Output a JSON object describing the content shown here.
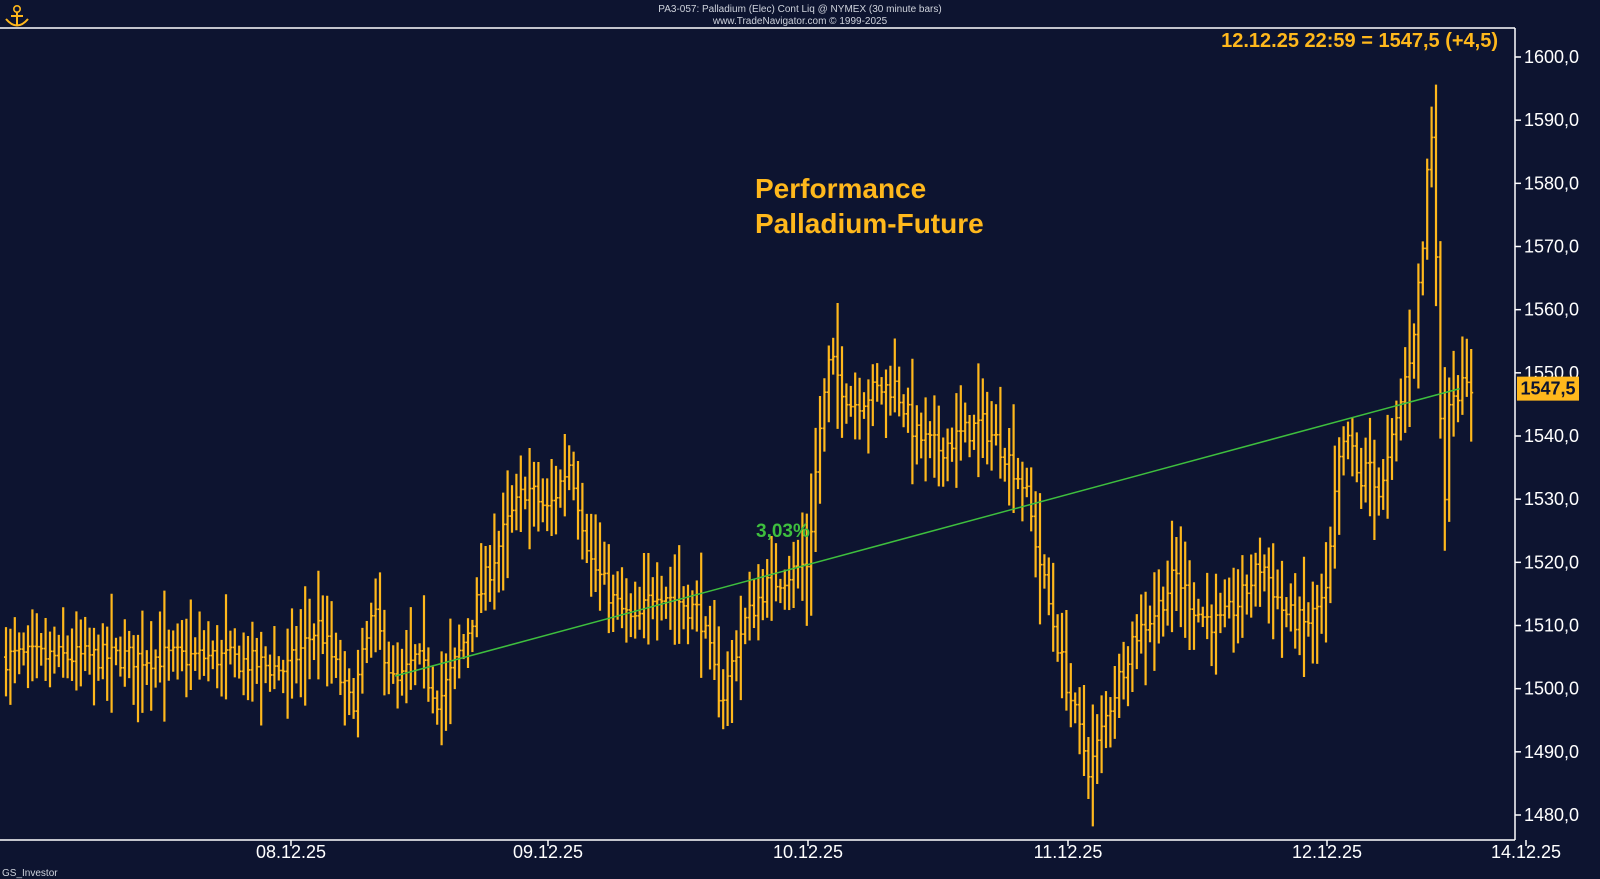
{
  "header": {
    "line1": "PA3-057: Palladium (Elec) Cont Liq @ NYMEX (30 minute bars)",
    "line2": "www.TradeNavigator.com © 1999-2025"
  },
  "watermark_bottom": "GS_Investor",
  "colors": {
    "background": "#0d1430",
    "bars": "#ffb81c",
    "trend": "#3ebf3e",
    "axis": "#ffffff"
  },
  "chart_data": {
    "type": "ohlc-bar",
    "title": "Performance",
    "subtitle": "Palladium-Future",
    "last_quote": "12.12.25 22:59 = 1547,5 (+4,5)",
    "last_price_label": "1547,5",
    "last_price": 1547.5,
    "trend_label": "3,03%",
    "trend_line": {
      "from": [
        "08.12.25 10:00",
        1502
      ],
      "to": [
        "12.12.25 23:00",
        1547.5
      ]
    },
    "ylim": [
      1480,
      1600
    ],
    "yticks": [
      "1480,0",
      "1490,0",
      "1500,0",
      "1510,0",
      "1520,0",
      "1530,0",
      "1540,0",
      "1550,0",
      "1560,0",
      "1570,0",
      "1580,0",
      "1590,0",
      "1600,0"
    ],
    "xticks": [
      "08.12.25",
      "09.12.25",
      "10.12.25",
      "11.12.25",
      "12.12.25",
      "14.12.25"
    ],
    "series": [
      {
        "key": [
          [
            "07.12.25 18:00",
            1505
          ],
          [
            "08.12.25 00:00",
            1503
          ],
          [
            "08.12.25 03:00",
            1510
          ],
          [
            "08.12.25 06:00",
            1497
          ],
          [
            "08.12.25 08:00",
            1512
          ],
          [
            "08.12.25 10:00",
            1500
          ],
          [
            "08.12.25 12:00",
            1505
          ],
          [
            "08.12.25 14:00",
            1498
          ],
          [
            "08.12.25 16:00",
            1506
          ],
          [
            "08.12.25 18:00",
            1516
          ],
          [
            "08.12.25 20:00",
            1525
          ],
          [
            "08.12.25 22:00",
            1532
          ],
          [
            "09.12.25 00:00",
            1528
          ],
          [
            "09.12.25 02:00",
            1536
          ],
          [
            "09.12.25 04:00",
            1520
          ],
          [
            "09.12.25 06:00",
            1514
          ],
          [
            "09.12.25 08:00",
            1510
          ],
          [
            "09.12.25 10:00",
            1516
          ],
          [
            "09.12.25 12:00",
            1514
          ],
          [
            "09.12.25 14:00",
            1512
          ],
          [
            "09.12.25 16:00",
            1498
          ],
          [
            "09.12.25 18:00",
            1510
          ],
          [
            "09.12.25 20:00",
            1516
          ],
          [
            "09.12.25 22:00",
            1518
          ],
          [
            "10.12.25 00:00",
            1520
          ],
          [
            "10.12.25 01:00",
            1540
          ],
          [
            "10.12.25 02:00",
            1552
          ],
          [
            "10.12.25 04:00",
            1545
          ],
          [
            "10.12.25 06:00",
            1547
          ],
          [
            "10.12.25 08:00",
            1548
          ],
          [
            "10.12.25 10:00",
            1540
          ],
          [
            "10.12.25 12:00",
            1538
          ],
          [
            "10.12.25 14:00",
            1540
          ],
          [
            "10.12.25 16:00",
            1542
          ],
          [
            "10.12.25 18:00",
            1538
          ],
          [
            "10.12.25 20:00",
            1532
          ],
          [
            "10.12.25 22:00",
            1515
          ],
          [
            "11.12.25 00:00",
            1500
          ],
          [
            "11.12.25 02:00",
            1487
          ],
          [
            "11.12.25 04:00",
            1498
          ],
          [
            "11.12.25 06:00",
            1508
          ],
          [
            "11.12.25 08:00",
            1512
          ],
          [
            "11.12.25 10:00",
            1518
          ],
          [
            "11.12.25 12:00",
            1512
          ],
          [
            "11.12.25 14:00",
            1510
          ],
          [
            "11.12.25 16:00",
            1514
          ],
          [
            "11.12.25 18:00",
            1520
          ],
          [
            "11.12.25 20:00",
            1512
          ],
          [
            "11.12.25 22:00",
            1510
          ],
          [
            "12.12.25 00:00",
            1515
          ],
          [
            "12.12.25 02:00",
            1535
          ],
          [
            "12.12.25 04:00",
            1540
          ],
          [
            "12.12.25 06:00",
            1532
          ],
          [
            "12.12.25 08:00",
            1536
          ],
          [
            "12.12.25 10:00",
            1530
          ],
          [
            "12.12.25 12:00",
            1538
          ],
          [
            "12.12.25 14:00",
            1546
          ],
          [
            "12.12.25 16:00",
            1555
          ],
          [
            "12.12.25 18:00",
            1570
          ],
          [
            "12.12.25 19:00",
            1585
          ],
          [
            "12.12.25 20:00",
            1590
          ],
          [
            "12.12.25 21:00",
            1545
          ],
          [
            "12.12.25 22:00",
            1530
          ],
          [
            "12.12.25 22:30",
            1540
          ],
          [
            "12.12.25 23:00",
            1547.5
          ]
        ]
      }
    ]
  }
}
